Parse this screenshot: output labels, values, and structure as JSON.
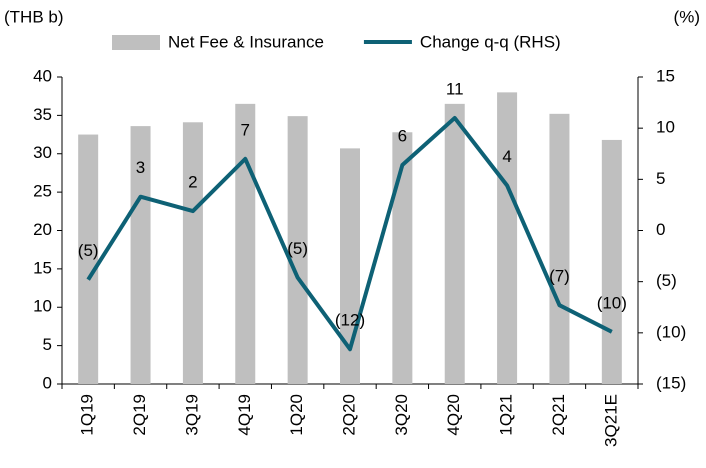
{
  "chart_data": {
    "type": "bar-line",
    "y_label": "(THB b)",
    "y2_label": "(%)",
    "categories": [
      "1Q19",
      "2Q19",
      "3Q19",
      "4Q19",
      "1Q20",
      "2Q20",
      "3Q20",
      "4Q20",
      "1Q21",
      "2Q21",
      "3Q21E"
    ],
    "series": [
      {
        "name": "Net Fee & Insurance",
        "type": "bar",
        "color": "#bfbfbf",
        "values": [
          32.5,
          33.6,
          34.1,
          36.5,
          34.9,
          30.7,
          32.8,
          36.5,
          38.0,
          35.2,
          31.8
        ]
      },
      {
        "name": "Change q-q (RHS)",
        "type": "line",
        "axis": "y2",
        "color": "#0e6175",
        "values": [
          -4.8,
          3.3,
          1.9,
          7.0,
          -4.6,
          -11.6,
          6.4,
          11.0,
          4.4,
          -7.3,
          -9.9
        ],
        "value_labels": [
          "(5)",
          "3",
          "2",
          "7",
          "(5)",
          "(12)",
          "6",
          "11",
          "4",
          "(7)",
          "(10)"
        ]
      }
    ],
    "ylim": [
      0,
      40
    ],
    "yticks": [
      0,
      5,
      10,
      15,
      20,
      25,
      30,
      35,
      40
    ],
    "y2lim": [
      -15,
      15
    ],
    "y2ticks": [
      {
        "value": -15,
        "label": "(15)"
      },
      {
        "value": -10,
        "label": "(10)"
      },
      {
        "value": -5,
        "label": "(5)"
      },
      0,
      5,
      10,
      15
    ],
    "legend": "top",
    "grid": false
  }
}
